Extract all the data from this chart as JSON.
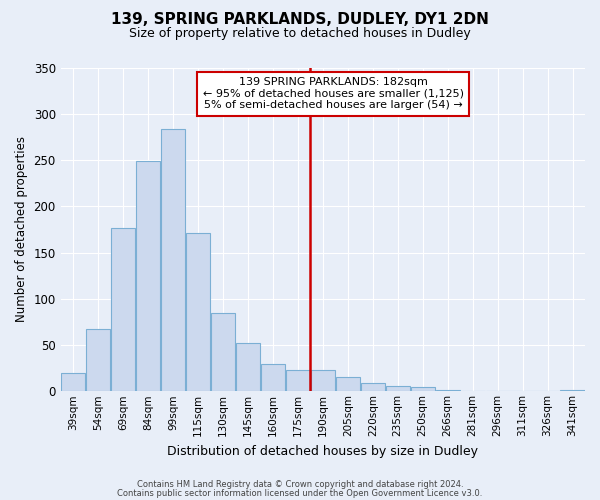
{
  "title": "139, SPRING PARKLANDS, DUDLEY, DY1 2DN",
  "subtitle": "Size of property relative to detached houses in Dudley",
  "xlabel": "Distribution of detached houses by size in Dudley",
  "ylabel": "Number of detached properties",
  "footer_line1": "Contains HM Land Registry data © Crown copyright and database right 2024.",
  "footer_line2": "Contains public sector information licensed under the Open Government Licence v3.0.",
  "bar_labels": [
    "39sqm",
    "54sqm",
    "69sqm",
    "84sqm",
    "99sqm",
    "115sqm",
    "130sqm",
    "145sqm",
    "160sqm",
    "175sqm",
    "190sqm",
    "205sqm",
    "220sqm",
    "235sqm",
    "250sqm",
    "266sqm",
    "281sqm",
    "296sqm",
    "311sqm",
    "326sqm",
    "341sqm"
  ],
  "bar_values": [
    20,
    67,
    176,
    249,
    283,
    171,
    85,
    52,
    29,
    23,
    23,
    15,
    9,
    6,
    5,
    1,
    0,
    0,
    0,
    0,
    1
  ],
  "bar_color": "#ccd9ee",
  "bar_edge_color": "#7bafd4",
  "vline_x_index": 9.8,
  "vline_color": "#cc0000",
  "annotation_title": "139 SPRING PARKLANDS: 182sqm",
  "annotation_line1": "← 95% of detached houses are smaller (1,125)",
  "annotation_line2": "5% of semi-detached houses are larger (54) →",
  "annotation_box_color": "#ffffff",
  "annotation_box_edge": "#cc0000",
  "ylim": [
    0,
    350
  ],
  "yticks": [
    0,
    50,
    100,
    150,
    200,
    250,
    300,
    350
  ],
  "bin_width": 15,
  "bg_color": "#e8eef8",
  "grid_color": "#ffffff"
}
